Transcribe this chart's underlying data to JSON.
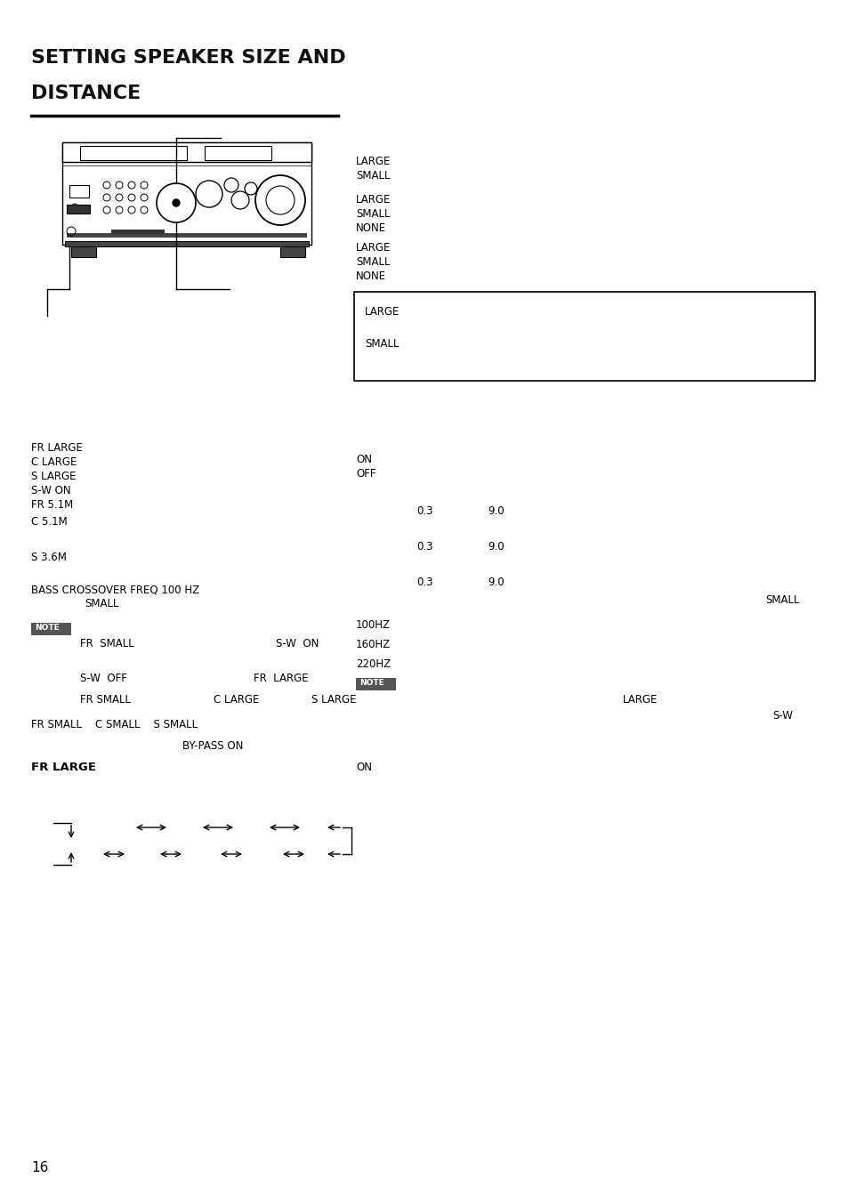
{
  "title_line1": "SETTING SPEAKER SIZE AND",
  "title_line2": "DISTANCE",
  "background_color": "#ffffff",
  "text_color": "#000000",
  "page_number": "16",
  "fig_w": 9.54,
  "fig_h": 13.51,
  "dpi": 100
}
